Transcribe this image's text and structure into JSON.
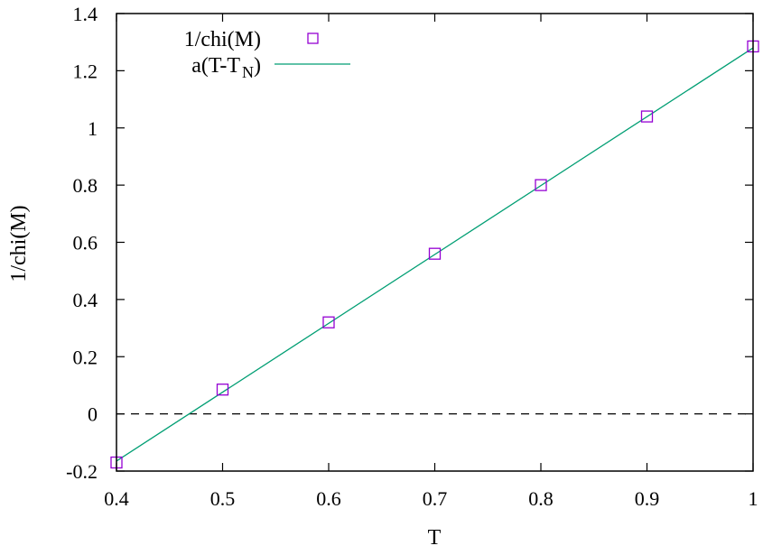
{
  "chart_data": {
    "type": "scatter",
    "xlabel": "T",
    "ylabel": "1/chi(M)",
    "xlim": [
      0.4,
      1.0
    ],
    "ylim": [
      -0.2,
      1.4
    ],
    "xticks": [
      0.4,
      0.5,
      0.6,
      0.7,
      0.8,
      0.9,
      1.0
    ],
    "xtick_labels": [
      "0.4",
      "0.5",
      "0.6",
      "0.7",
      "0.8",
      "0.9",
      "1"
    ],
    "yticks": [
      -0.2,
      0,
      0.2,
      0.4,
      0.6,
      0.8,
      1.0,
      1.2,
      1.4
    ],
    "ytick_labels": [
      "-0.2",
      "0",
      "0.2",
      "0.4",
      "0.6",
      "0.8",
      "1",
      "1.2",
      "1.4"
    ],
    "grid": false,
    "legend_position": "top-left",
    "series": [
      {
        "name": "1/chi(M)",
        "type": "scatter",
        "marker": "open-square",
        "color": "#9400d3",
        "x": [
          0.4,
          0.5,
          0.6,
          0.7,
          0.8,
          0.9,
          1.0
        ],
        "y": [
          -0.17,
          0.085,
          0.32,
          0.56,
          0.8,
          1.04,
          1.285
        ]
      },
      {
        "name": "a(T-T",
        "name_subscript": "N",
        "name_suffix": ")",
        "type": "line",
        "color": "#009e73",
        "x": [
          0.4,
          1.0
        ],
        "y": [
          -0.165,
          1.28
        ]
      }
    ],
    "reference_line": {
      "y": 0,
      "style": "dashed",
      "color": "#000000"
    }
  }
}
